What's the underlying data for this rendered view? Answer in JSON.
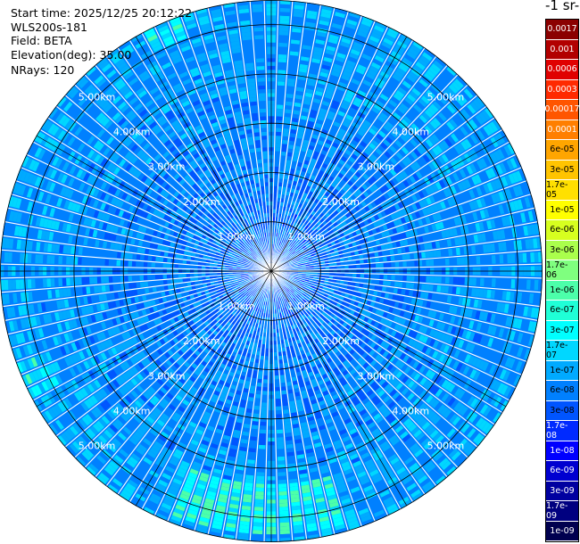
{
  "header": {
    "start_time": "Start time: 2025/12/25 20:12:22",
    "instrument": "WLS200s-181",
    "field": "Field: BETA",
    "elevation": "Elevation(deg): 35.00",
    "nrays": "NRays: 120"
  },
  "colorbar": {
    "unit_label": "-1 sr-",
    "levels": [
      "0.0017",
      "0.001",
      "0.0006",
      "0.0003",
      "0.00017",
      "0.0001",
      "6e-05",
      "3e-05",
      "1.7e-05",
      "1e-05",
      "6e-06",
      "3e-06",
      "1.7e-06",
      "1e-06",
      "6e-07",
      "3e-07",
      "1.7e-07",
      "1e-07",
      "6e-08",
      "3e-08",
      "1.7e-08",
      "1e-08",
      "6e-09",
      "3e-09",
      "1.7e-09",
      "1e-09"
    ],
    "colors": [
      "#8b0000",
      "#b20000",
      "#e00000",
      "#ff2a00",
      "#ff5500",
      "#ff7f00",
      "#ffa500",
      "#ffc400",
      "#ffe000",
      "#ffff00",
      "#d7ff1f",
      "#aaff4c",
      "#7fff7f",
      "#4cffaa",
      "#1fffd7",
      "#00ffff",
      "#00d7ff",
      "#00aaff",
      "#0080ff",
      "#0055ff",
      "#002aff",
      "#0000ff",
      "#0000d0",
      "#0000a0",
      "#000080",
      "#00004f"
    ]
  },
  "chart_data": {
    "type": "heatmap",
    "projection": "polar (PPI)",
    "n_rays": 120,
    "max_range_km": 5.5,
    "range_rings_km": [
      1,
      2,
      3,
      4,
      5
    ],
    "range_labels": [
      "1.00km",
      "2.00km",
      "3.00km",
      "4.00km",
      "5.00km"
    ],
    "dominant_level": "1e-07",
    "notable_feature": "higher backscatter patch near the bottom of the scan (about 4.5–5.2 km)"
  }
}
